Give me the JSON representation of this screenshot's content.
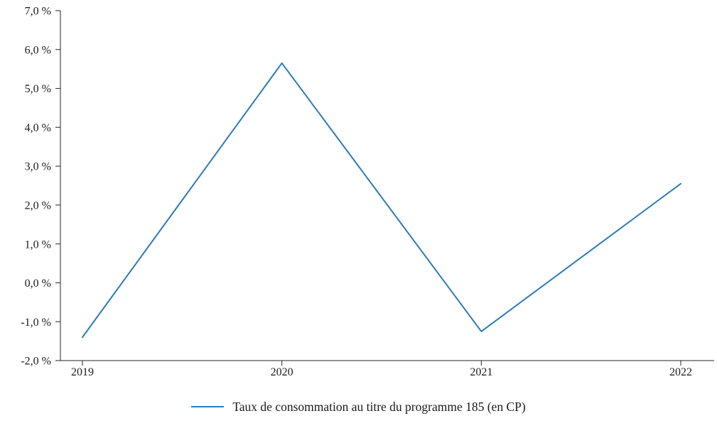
{
  "chart_data": {
    "type": "line",
    "x": [
      2019,
      2020,
      2021,
      2022
    ],
    "x_tick_labels": [
      "2019",
      "2020",
      "2021",
      "2022"
    ],
    "series": [
      {
        "name": "Taux de consommation au titre du programme 185 (en CP)",
        "values": [
          -1.4,
          5.65,
          -1.25,
          2.55
        ]
      }
    ],
    "ylim": [
      -2.0,
      7.0
    ],
    "y_ticks": [
      {
        "value": 7.0,
        "label": "7,0 %"
      },
      {
        "value": 6.0,
        "label": "6,0 %"
      },
      {
        "value": 5.0,
        "label": "5,0 %"
      },
      {
        "value": 4.0,
        "label": "4,0 %"
      },
      {
        "value": 3.0,
        "label": "3,0 %"
      },
      {
        "value": 2.0,
        "label": "2,0 %"
      },
      {
        "value": 1.0,
        "label": "1,0 %"
      },
      {
        "value": 0.0,
        "label": "0,0 %"
      },
      {
        "value": -1.0,
        "label": "-1,0 %"
      },
      {
        "value": -2.0,
        "label": "-2,0 %"
      }
    ],
    "title": "",
    "xlabel": "",
    "ylabel": "",
    "grid": false,
    "legend": "Taux de consommation au titre du programme 185 (en CP)",
    "legend_position": "bottom-center",
    "line_color": "#2b7bba"
  }
}
